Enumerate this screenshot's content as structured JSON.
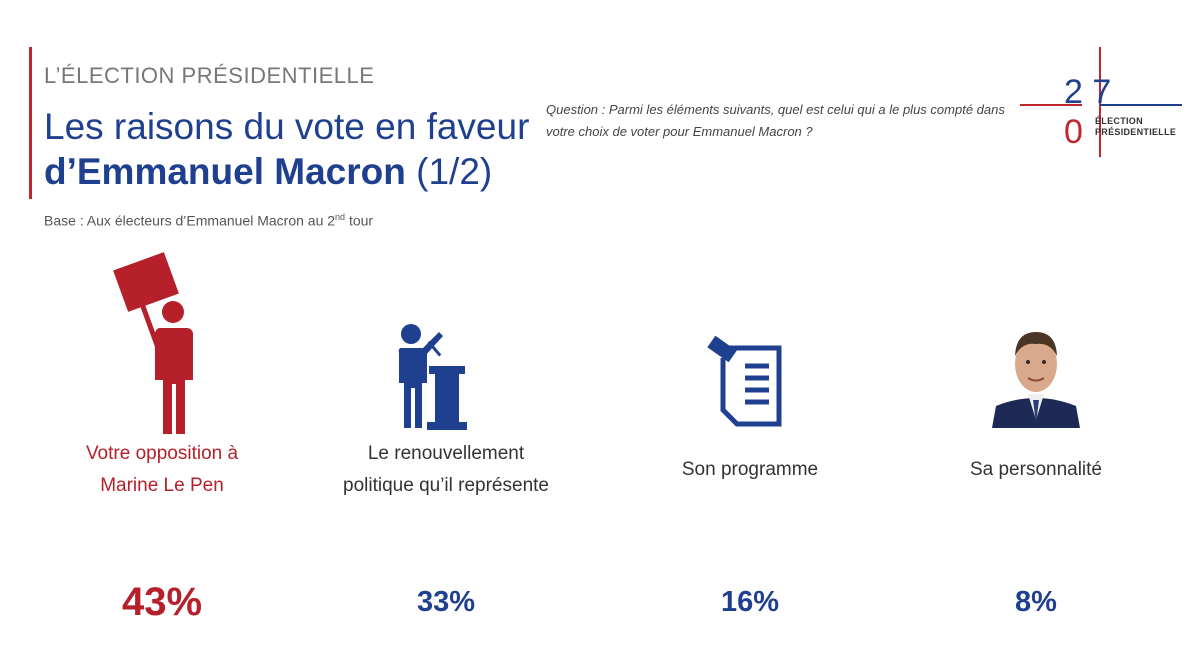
{
  "header": {
    "kicker": "L’ÉLECTION PRÉSIDENTIELLE",
    "title_line1": "Les raisons du vote en faveur",
    "title_bold": "d’Emmanuel Macron",
    "title_suffix": " (1/2)",
    "base": "Base :  Aux électeurs d’Emmanuel Macron au 2",
    "base_sup": "nd",
    "base_end": " tour",
    "question": "Question : Parmi les éléments suivants, quel est celui qui a le plus compté dans votre choix de voter pour Emmanuel Macron ?"
  },
  "logo": {
    "year_top": "2 7",
    "year_bottom": "0",
    "label_line1": "ÉLECTION",
    "label_line2": "PRÉSIDENTIELLE"
  },
  "colors": {
    "brand_blue": "#1f3f8f",
    "accent_red": "#b5202a",
    "grey_text": "#777777"
  },
  "chart_data": {
    "type": "table",
    "title": "Les raisons du vote en faveur d’Emmanuel Macron (1/2)",
    "unit": "%",
    "categories": [
      "Votre opposition à Marine Le Pen",
      "Le renouvellement politique qu’il représente",
      "Son programme",
      "Sa personnalité"
    ],
    "values": [
      43,
      33,
      16,
      8
    ],
    "items": [
      {
        "id": "opposition",
        "label": "Votre opposition à Marine Le Pen",
        "value": 43,
        "value_text": "43%",
        "icon": "protester-sign-icon",
        "highlight": true
      },
      {
        "id": "renouvellement",
        "label": "Le renouvellement politique qu’il représente",
        "value": 33,
        "value_text": "33%",
        "icon": "speaker-podium-icon",
        "highlight": false
      },
      {
        "id": "programme",
        "label": "Son programme",
        "value": 16,
        "value_text": "16%",
        "icon": "document-pen-icon",
        "highlight": false
      },
      {
        "id": "personnalite",
        "label": "Sa personnalité",
        "value": 8,
        "value_text": "8%",
        "icon": "portrait-photo-icon",
        "highlight": false
      }
    ]
  }
}
